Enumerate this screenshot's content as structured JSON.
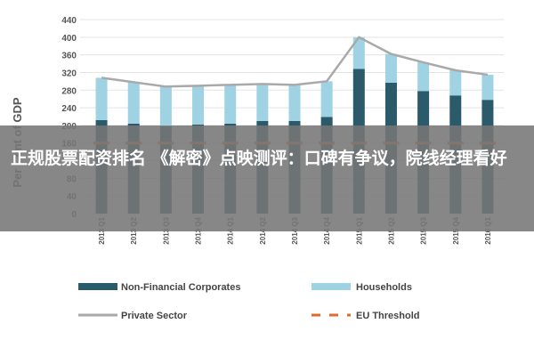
{
  "chart_data": {
    "type": "bar",
    "stacked": true,
    "ylabel": "Per Cent of GDP",
    "ylim": [
      0,
      440
    ],
    "yticks": [
      0,
      40,
      80,
      120,
      160,
      200,
      240,
      280,
      320,
      360,
      400,
      440
    ],
    "grid": true,
    "legend_position": "bottom",
    "categories": [
      "2013 Q1",
      "2013 Q2",
      "2013 Q3",
      "2013 Q4",
      "2014 Q1",
      "2014 Q2",
      "2014 Q3",
      "2014 Q4",
      "2015 Q1",
      "2015 Q2",
      "2015 Q3",
      "2015 Q4",
      "2016 Q1"
    ],
    "series": [
      {
        "name": "Non-Financial Corporates",
        "kind": "bar",
        "color": "#2b5a6b",
        "values": [
          212,
          204,
          198,
          202,
          204,
          210,
          210,
          219,
          328,
          297,
          278,
          268,
          258
        ]
      },
      {
        "name": "Households",
        "kind": "bar",
        "color": "#9fd3e4",
        "values": [
          96,
          94,
          90,
          88,
          88,
          84,
          82,
          81,
          72,
          65,
          65,
          57,
          57
        ]
      },
      {
        "name": "Private Sector",
        "kind": "line",
        "color": "#a9a9a9",
        "values": [
          308,
          298,
          288,
          290,
          292,
          294,
          292,
          300,
          400,
          362,
          343,
          325,
          315
        ]
      },
      {
        "name": "EU Threshold",
        "kind": "dashed-line",
        "color": "#e0692c",
        "values": [
          160,
          160,
          160,
          160,
          160,
          160,
          160,
          160,
          160,
          160,
          160,
          160,
          160
        ]
      }
    ]
  },
  "overlay": {
    "text": "正规股票配资排名 《解密》点映测评：口碑有争议，院线经理看好"
  }
}
